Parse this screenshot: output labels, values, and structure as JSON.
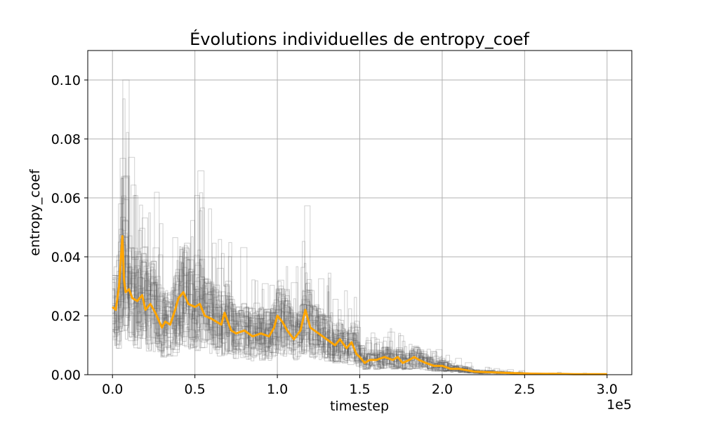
{
  "chart_data": {
    "type": "line",
    "title": "Évolutions individuelles de entropy_coef",
    "xlabel": "timestep",
    "ylabel": "entropy_coef",
    "x_offset_label": "1e5",
    "xlim": [
      -15000,
      315000
    ],
    "ylim": [
      0,
      0.11
    ],
    "x_ticks": [
      0,
      50000,
      100000,
      150000,
      200000,
      250000,
      300000
    ],
    "x_tick_labels": [
      "0.0",
      "0.5",
      "1.0",
      "1.5",
      "2.0",
      "2.5",
      "3.0"
    ],
    "y_ticks": [
      0,
      0.02,
      0.04,
      0.06,
      0.08,
      0.1
    ],
    "y_tick_labels": [
      "0.00",
      "0.02",
      "0.04",
      "0.06",
      "0.08",
      "0.10"
    ],
    "grid": true,
    "legend": "none",
    "colors": {
      "individual_runs": "#555555",
      "mean": "#ffa500"
    },
    "individual_run_count": 30,
    "mean_series": {
      "x": [
        0,
        2000,
        4000,
        6000,
        7000,
        8000,
        10000,
        12000,
        15000,
        18000,
        20000,
        23000,
        26000,
        30000,
        32000,
        35000,
        38000,
        40000,
        43000,
        46000,
        50000,
        53000,
        56000,
        60000,
        63000,
        66000,
        68000,
        70000,
        72000,
        75000,
        80000,
        85000,
        90000,
        95000,
        98000,
        100000,
        103000,
        106000,
        110000,
        114000,
        117000,
        120000,
        125000,
        130000,
        135000,
        138000,
        142000,
        145000,
        148000,
        150000,
        153000,
        156000,
        160000,
        165000,
        170000,
        173000,
        176000,
        180000,
        183000,
        186000,
        190000,
        195000,
        200000,
        205000,
        210000,
        215000,
        220000,
        230000,
        240000,
        250000,
        260000,
        270000,
        280000,
        290000,
        300000
      ],
      "y": [
        0.023,
        0.022,
        0.03,
        0.047,
        0.032,
        0.028,
        0.029,
        0.026,
        0.025,
        0.027,
        0.022,
        0.024,
        0.021,
        0.016,
        0.018,
        0.017,
        0.022,
        0.026,
        0.028,
        0.024,
        0.023,
        0.024,
        0.02,
        0.019,
        0.018,
        0.017,
        0.021,
        0.018,
        0.015,
        0.014,
        0.015,
        0.013,
        0.014,
        0.013,
        0.016,
        0.02,
        0.018,
        0.015,
        0.012,
        0.015,
        0.022,
        0.016,
        0.014,
        0.012,
        0.01,
        0.012,
        0.009,
        0.011,
        0.007,
        0.006,
        0.004,
        0.005,
        0.005,
        0.006,
        0.005,
        0.006,
        0.004,
        0.005,
        0.006,
        0.005,
        0.004,
        0.003,
        0.003,
        0.002,
        0.002,
        0.0015,
        0.001,
        0.0008,
        0.0006,
        0.0004,
        0.0003,
        0.0003,
        0.0002,
        0.0002,
        0.0002
      ]
    }
  }
}
